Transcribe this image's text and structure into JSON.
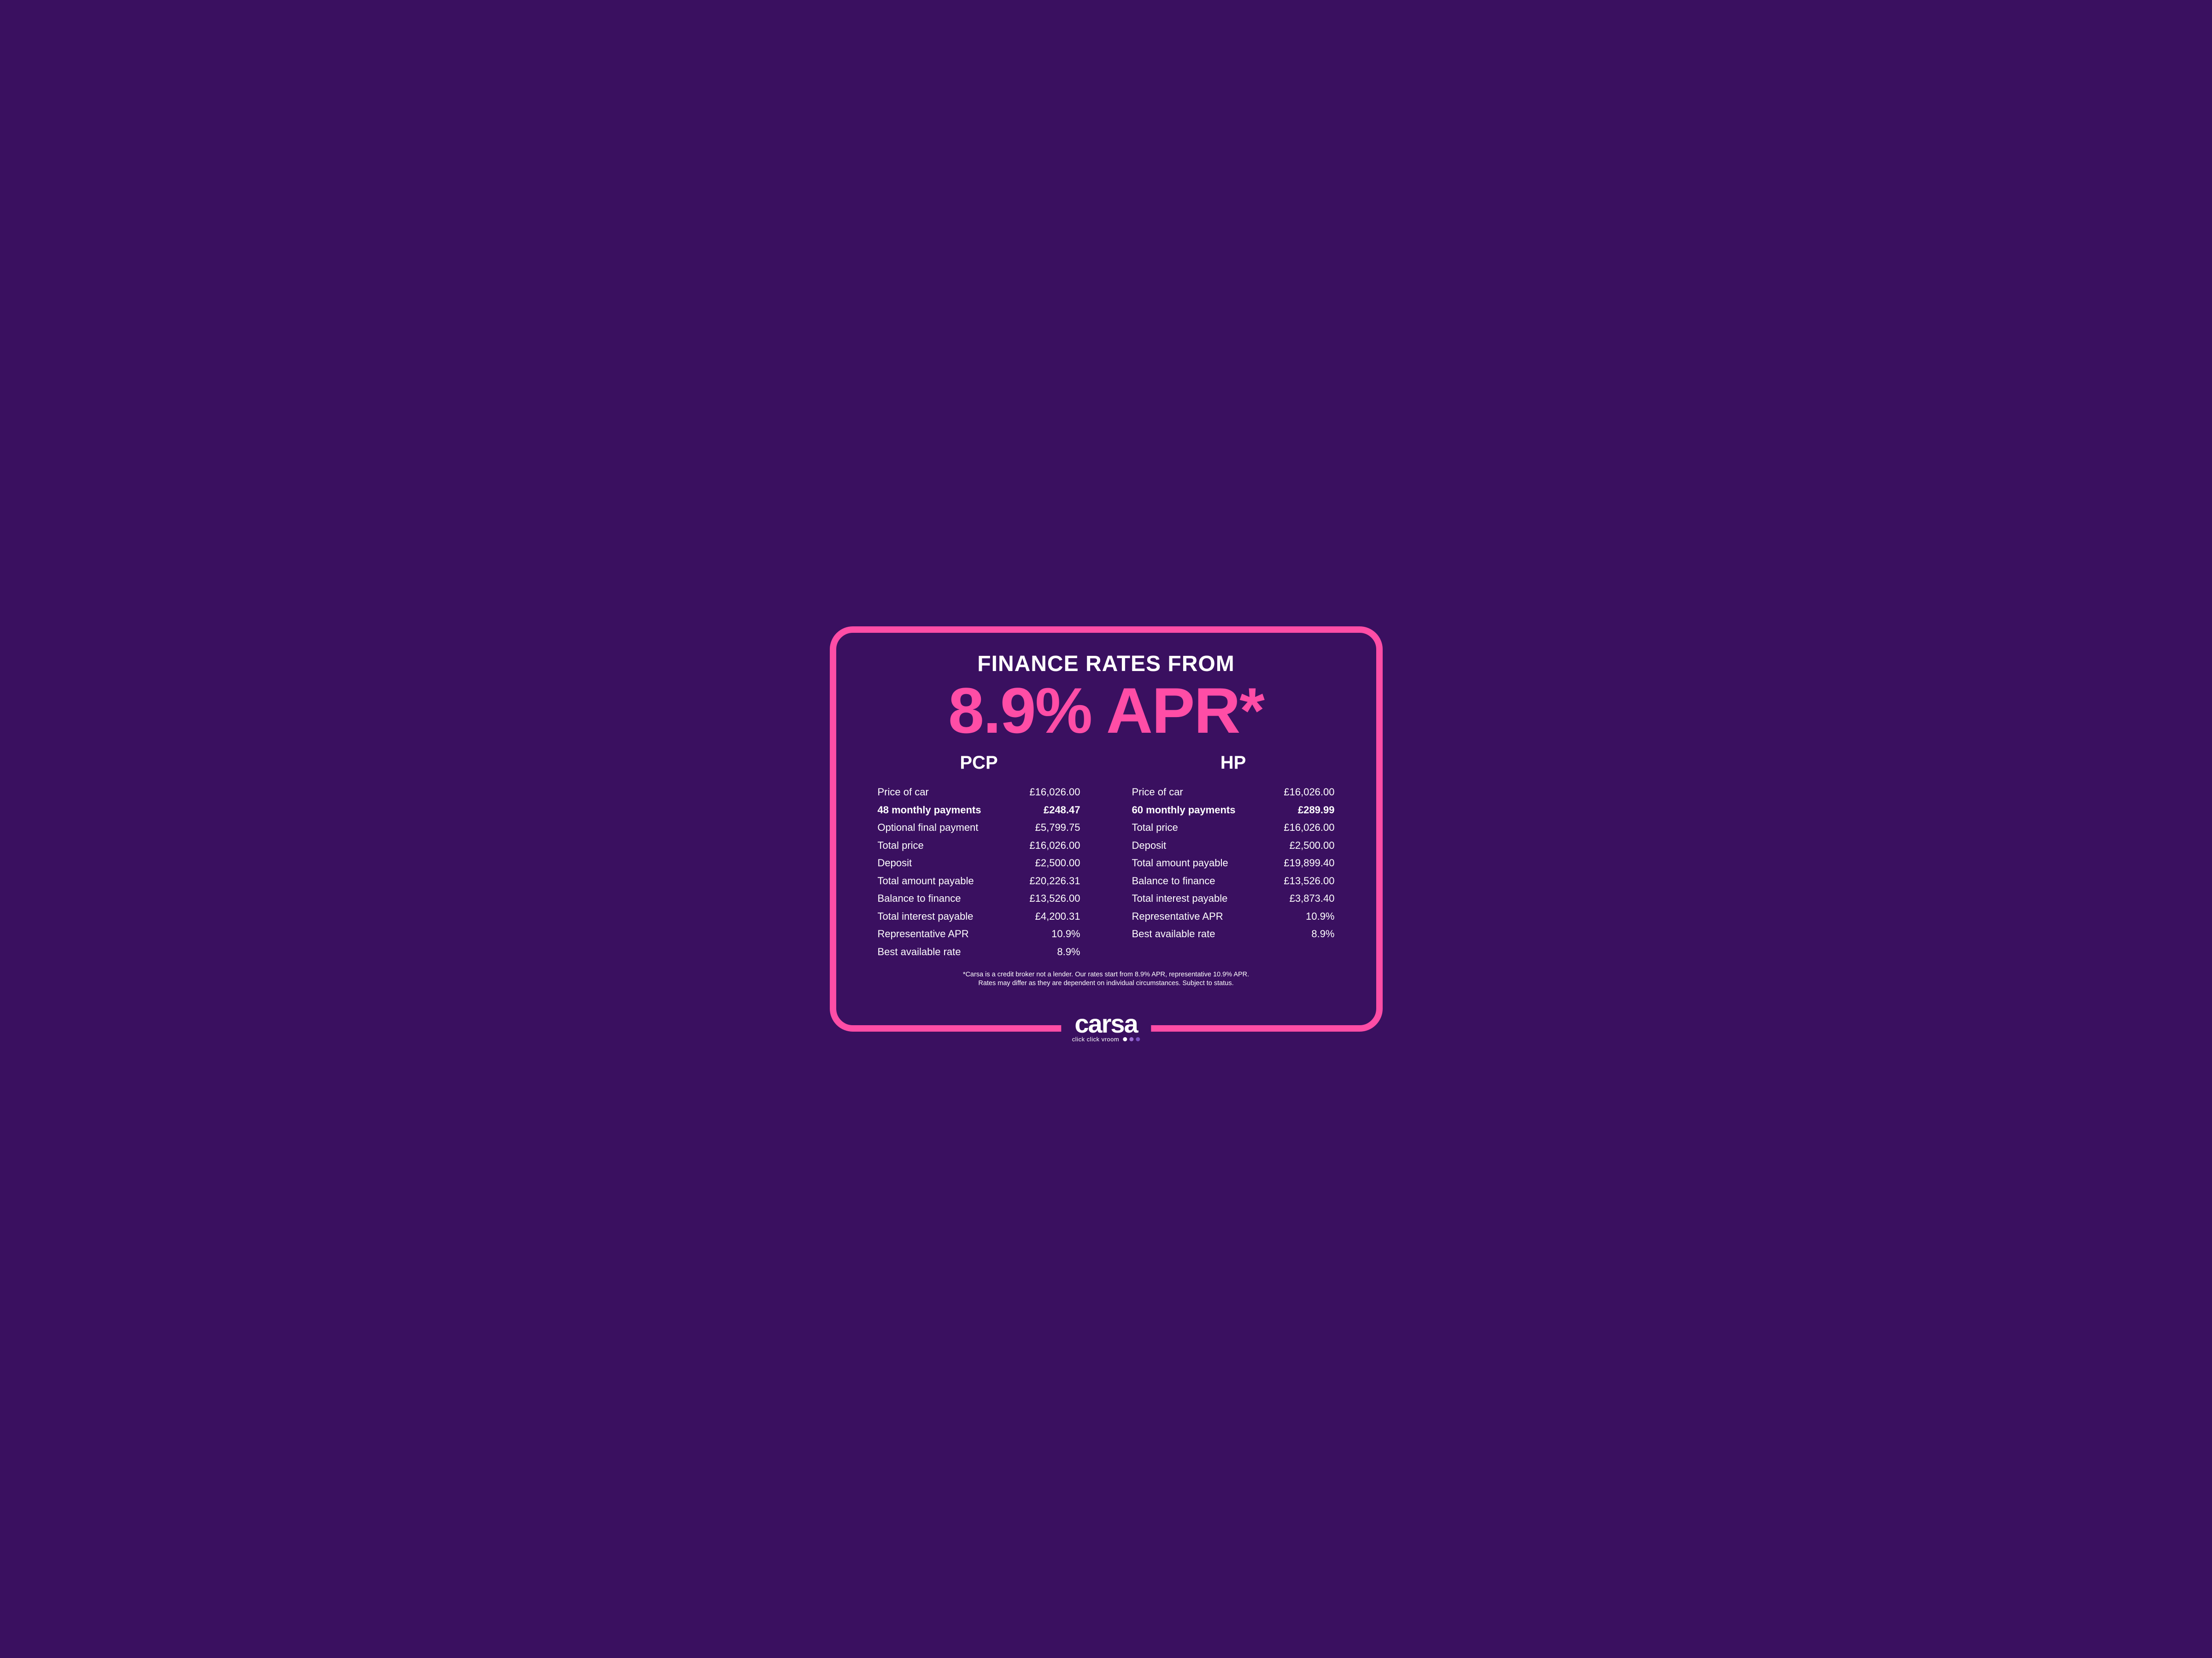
{
  "colors": {
    "background": "#3a1060",
    "accent": "#ff4da6",
    "text": "#ffffff",
    "dot1": "#ffffff",
    "dot2": "#9b6bd4",
    "dot3": "#7a4fc2"
  },
  "header": {
    "title": "FINANCE RATES FROM",
    "apr": "8.9% APR*"
  },
  "pcp": {
    "title": "PCP",
    "rows": [
      {
        "label": "Price of car",
        "value": "£16,026.00",
        "bold": false
      },
      {
        "label": "48 monthly payments",
        "value": "£248.47",
        "bold": true
      },
      {
        "label": "Optional final payment",
        "value": "£5,799.75",
        "bold": false
      },
      {
        "label": "Total price",
        "value": "£16,026.00",
        "bold": false
      },
      {
        "label": "Deposit",
        "value": "£2,500.00",
        "bold": false
      },
      {
        "label": "Total amount payable",
        "value": "£20,226.31",
        "bold": false
      },
      {
        "label": "Balance to finance",
        "value": "£13,526.00",
        "bold": false
      },
      {
        "label": "Total interest payable",
        "value": "£4,200.31",
        "bold": false
      },
      {
        "label": "Representative APR",
        "value": "10.9%",
        "bold": false
      },
      {
        "label": "Best available rate",
        "value": "8.9%",
        "bold": false
      }
    ]
  },
  "hp": {
    "title": "HP",
    "rows": [
      {
        "label": "Price of car",
        "value": "£16,026.00",
        "bold": false
      },
      {
        "label": "60 monthly payments",
        "value": "£289.99",
        "bold": true
      },
      {
        "label": "Total price",
        "value": "£16,026.00",
        "bold": false
      },
      {
        "label": "Deposit",
        "value": "£2,500.00",
        "bold": false
      },
      {
        "label": "Total amount payable",
        "value": "£19,899.40",
        "bold": false
      },
      {
        "label": "Balance to finance",
        "value": "£13,526.00",
        "bold": false
      },
      {
        "label": "Total interest payable",
        "value": "£3,873.40",
        "bold": false
      },
      {
        "label": "Representative APR",
        "value": "10.9%",
        "bold": false
      },
      {
        "label": "Best available rate",
        "value": "8.9%",
        "bold": false
      }
    ]
  },
  "disclaimer": {
    "line1": "*Carsa is a credit broker not a lender. Our rates start from 8.9% APR, representative 10.9% APR.",
    "line2": "Rates may differ as they are dependent on individual circumstances. Subject to status."
  },
  "brand": {
    "name": "carsa",
    "tagline": "click click vroom"
  }
}
